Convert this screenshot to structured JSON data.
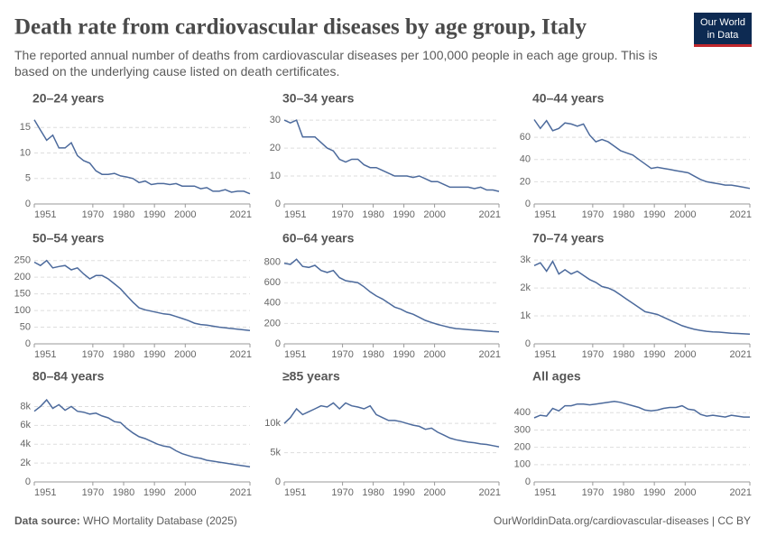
{
  "header": {
    "title": "Death rate from cardiovascular diseases by age group, Italy",
    "subtitle": "The reported annual number of deaths from cardiovascular diseases per 100,000 people in each age group. This is based on the underlying cause listed on death certificates.",
    "logo": [
      "Our World",
      "in Data"
    ]
  },
  "footer": {
    "source_label": "Data source:",
    "source": "WHO Mortality Database (2025)",
    "credit": "OurWorldinData.org/cardiovascular-diseases | CC BY"
  },
  "chart_data": [
    {
      "type": "line",
      "title": "20–24 years",
      "color": "#4c6a9c",
      "xlim": [
        1951,
        2021
      ],
      "xticks": [
        1951,
        1970,
        1980,
        1990,
        2000,
        2021
      ],
      "ylim": [
        0,
        17
      ],
      "yticks": [
        0,
        5,
        10,
        15
      ],
      "grid": true,
      "x": [
        1951,
        1953,
        1955,
        1957,
        1959,
        1961,
        1963,
        1965,
        1967,
        1969,
        1971,
        1973,
        1975,
        1977,
        1979,
        1981,
        1983,
        1985,
        1987,
        1989,
        1991,
        1993,
        1995,
        1997,
        1999,
        2001,
        2003,
        2005,
        2007,
        2009,
        2011,
        2013,
        2015,
        2017,
        2019,
        2021
      ],
      "values": [
        16.5,
        14.5,
        12.5,
        13.5,
        11,
        11,
        12,
        9.5,
        8.5,
        8,
        6.5,
        5.8,
        5.8,
        6,
        5.5,
        5.3,
        5,
        4.2,
        4.5,
        3.8,
        4,
        4,
        3.8,
        4,
        3.5,
        3.5,
        3.5,
        3,
        3.2,
        2.5,
        2.5,
        2.8,
        2.3,
        2.5,
        2.5,
        2
      ]
    },
    {
      "type": "line",
      "title": "30–34 years",
      "color": "#4c6a9c",
      "xlim": [
        1951,
        2021
      ],
      "xticks": [
        1951,
        1970,
        1980,
        1990,
        2000,
        2021
      ],
      "ylim": [
        0,
        31
      ],
      "yticks": [
        0,
        10,
        20,
        30
      ],
      "grid": true,
      "x": [
        1951,
        1953,
        1955,
        1957,
        1959,
        1961,
        1963,
        1965,
        1967,
        1969,
        1971,
        1973,
        1975,
        1977,
        1979,
        1981,
        1983,
        1985,
        1987,
        1989,
        1991,
        1993,
        1995,
        1997,
        1999,
        2001,
        2003,
        2005,
        2007,
        2009,
        2011,
        2013,
        2015,
        2017,
        2019,
        2021
      ],
      "values": [
        30,
        29,
        30,
        24,
        24,
        24,
        22,
        20,
        19,
        16,
        15,
        16,
        16,
        14,
        13,
        13,
        12,
        11,
        10,
        10,
        10,
        9.5,
        10,
        9,
        8,
        8,
        7,
        6,
        6,
        6,
        6,
        5.5,
        6,
        5,
        5,
        4.5
      ]
    },
    {
      "type": "line",
      "title": "40–44 years",
      "color": "#4c6a9c",
      "xlim": [
        1951,
        2021
      ],
      "xticks": [
        1951,
        1970,
        1980,
        1990,
        2000,
        2021
      ],
      "ylim": [
        0,
        78
      ],
      "yticks": [
        0,
        20,
        40,
        60
      ],
      "grid": true,
      "x": [
        1951,
        1953,
        1955,
        1957,
        1959,
        1961,
        1963,
        1965,
        1967,
        1969,
        1971,
        1973,
        1975,
        1977,
        1979,
        1981,
        1983,
        1985,
        1987,
        1989,
        1991,
        1993,
        1995,
        1997,
        1999,
        2001,
        2003,
        2005,
        2007,
        2009,
        2011,
        2013,
        2015,
        2017,
        2019,
        2021
      ],
      "values": [
        76,
        68,
        75,
        66,
        68,
        73,
        72,
        70,
        72,
        62,
        56,
        58,
        56,
        52,
        48,
        46,
        44,
        40,
        36,
        32,
        33,
        32,
        31,
        30,
        29,
        28,
        25,
        22,
        20,
        19,
        18,
        17,
        17,
        16,
        15,
        14
      ]
    },
    {
      "type": "line",
      "title": "50–54 years",
      "color": "#4c6a9c",
      "xlim": [
        1951,
        2021
      ],
      "xticks": [
        1951,
        1970,
        1980,
        1990,
        2000,
        2021
      ],
      "ylim": [
        0,
        260
      ],
      "yticks": [
        0,
        50,
        100,
        150,
        200,
        250
      ],
      "grid": true,
      "x": [
        1951,
        1953,
        1955,
        1957,
        1959,
        1961,
        1963,
        1965,
        1967,
        1969,
        1971,
        1973,
        1975,
        1977,
        1979,
        1981,
        1983,
        1985,
        1987,
        1989,
        1991,
        1993,
        1995,
        1997,
        1999,
        2001,
        2003,
        2005,
        2007,
        2009,
        2011,
        2013,
        2015,
        2017,
        2019,
        2021
      ],
      "values": [
        245,
        235,
        250,
        228,
        232,
        235,
        222,
        228,
        210,
        195,
        205,
        205,
        195,
        180,
        165,
        145,
        125,
        108,
        102,
        98,
        94,
        90,
        88,
        82,
        76,
        70,
        62,
        58,
        56,
        53,
        50,
        48,
        46,
        44,
        42,
        40
      ]
    },
    {
      "type": "line",
      "title": "60–64 years",
      "color": "#4c6a9c",
      "xlim": [
        1951,
        2021
      ],
      "xticks": [
        1951,
        1970,
        1980,
        1990,
        2000,
        2021
      ],
      "ylim": [
        0,
        850
      ],
      "yticks": [
        0,
        200,
        400,
        600,
        800
      ],
      "grid": true,
      "x": [
        1951,
        1953,
        1955,
        1957,
        1959,
        1961,
        1963,
        1965,
        1967,
        1969,
        1971,
        1973,
        1975,
        1977,
        1979,
        1981,
        1983,
        1985,
        1987,
        1989,
        1991,
        1993,
        1995,
        1997,
        1999,
        2001,
        2003,
        2005,
        2007,
        2009,
        2011,
        2013,
        2015,
        2017,
        2019,
        2021
      ],
      "values": [
        790,
        780,
        830,
        760,
        750,
        770,
        720,
        700,
        720,
        650,
        620,
        610,
        600,
        560,
        510,
        470,
        440,
        400,
        360,
        340,
        310,
        290,
        260,
        230,
        210,
        190,
        175,
        160,
        150,
        145,
        140,
        135,
        130,
        125,
        120,
        118
      ]
    },
    {
      "type": "line",
      "title": "70–74 years",
      "color": "#4c6a9c",
      "xlim": [
        1951,
        2021
      ],
      "xticks": [
        1951,
        1970,
        1980,
        1990,
        2000,
        2021
      ],
      "ylim": [
        0,
        3100
      ],
      "yticks": [
        0,
        {
          "value": 1000,
          "label": "1k"
        },
        {
          "value": 2000,
          "label": "2k"
        },
        {
          "value": 3000,
          "label": "3k"
        }
      ],
      "grid": true,
      "x": [
        1951,
        1953,
        1955,
        1957,
        1959,
        1961,
        1963,
        1965,
        1967,
        1969,
        1971,
        1973,
        1975,
        1977,
        1979,
        1981,
        1983,
        1985,
        1987,
        1989,
        1991,
        1993,
        1995,
        1997,
        1999,
        2001,
        2003,
        2005,
        2007,
        2009,
        2011,
        2013,
        2015,
        2017,
        2019,
        2021
      ],
      "values": [
        2800,
        2900,
        2600,
        2950,
        2500,
        2650,
        2500,
        2600,
        2450,
        2300,
        2200,
        2050,
        2000,
        1900,
        1750,
        1600,
        1450,
        1300,
        1150,
        1100,
        1050,
        950,
        850,
        750,
        650,
        580,
        520,
        480,
        450,
        430,
        420,
        400,
        380,
        370,
        360,
        350
      ]
    },
    {
      "type": "line",
      "title": "80–84 years",
      "color": "#4c6a9c",
      "xlim": [
        1951,
        2021
      ],
      "xticks": [
        1951,
        1970,
        1980,
        1990,
        2000,
        2021
      ],
      "ylim": [
        0,
        9000
      ],
      "yticks": [
        0,
        {
          "value": 2000,
          "label": "2k"
        },
        {
          "value": 4000,
          "label": "4k"
        },
        {
          "value": 6000,
          "label": "6k"
        },
        {
          "value": 8000,
          "label": "8k"
        }
      ],
      "grid": true,
      "x": [
        1951,
        1953,
        1955,
        1957,
        1959,
        1961,
        1963,
        1965,
        1967,
        1969,
        1971,
        1973,
        1975,
        1977,
        1979,
        1981,
        1983,
        1985,
        1987,
        1989,
        1991,
        1993,
        1995,
        1997,
        1999,
        2001,
        2003,
        2005,
        2007,
        2009,
        2011,
        2013,
        2015,
        2017,
        2019,
        2021
      ],
      "values": [
        7500,
        8000,
        8700,
        7800,
        8200,
        7600,
        8000,
        7500,
        7400,
        7200,
        7300,
        7000,
        6800,
        6400,
        6300,
        5700,
        5200,
        4800,
        4600,
        4300,
        4000,
        3800,
        3700,
        3300,
        3000,
        2800,
        2600,
        2500,
        2300,
        2200,
        2100,
        2000,
        1900,
        1800,
        1700,
        1600
      ]
    },
    {
      "type": "line",
      "title": "≥85 years",
      "color": "#4c6a9c",
      "xlim": [
        1951,
        2021
      ],
      "xticks": [
        1951,
        1970,
        1980,
        1990,
        2000,
        2021
      ],
      "ylim": [
        0,
        14500
      ],
      "yticks": [
        0,
        {
          "value": 5000,
          "label": "5k"
        },
        {
          "value": 10000,
          "label": "10k"
        }
      ],
      "grid": true,
      "x": [
        1951,
        1953,
        1955,
        1957,
        1959,
        1961,
        1963,
        1965,
        1967,
        1969,
        1971,
        1973,
        1975,
        1977,
        1979,
        1981,
        1983,
        1985,
        1987,
        1989,
        1991,
        1993,
        1995,
        1997,
        1999,
        2001,
        2003,
        2005,
        2007,
        2009,
        2011,
        2013,
        2015,
        2017,
        2019,
        2021
      ],
      "values": [
        10000,
        11000,
        12500,
        11500,
        12000,
        12500,
        13000,
        12800,
        13500,
        12500,
        13500,
        13000,
        12800,
        12500,
        13000,
        11500,
        11000,
        10500,
        10500,
        10300,
        10000,
        9700,
        9500,
        9000,
        9200,
        8500,
        8000,
        7500,
        7200,
        7000,
        6800,
        6700,
        6500,
        6400,
        6200,
        6000
      ]
    },
    {
      "type": "line",
      "title": "All ages",
      "color": "#4c6a9c",
      "xlim": [
        1951,
        2021
      ],
      "xticks": [
        1951,
        1970,
        1980,
        1990,
        2000,
        2021
      ],
      "ylim": [
        0,
        490
      ],
      "yticks": [
        0,
        100,
        200,
        300,
        400
      ],
      "grid": true,
      "x": [
        1951,
        1953,
        1955,
        1957,
        1959,
        1961,
        1963,
        1965,
        1967,
        1969,
        1971,
        1973,
        1975,
        1977,
        1979,
        1981,
        1983,
        1985,
        1987,
        1989,
        1991,
        1993,
        1995,
        1997,
        1999,
        2001,
        2003,
        2005,
        2007,
        2009,
        2011,
        2013,
        2015,
        2017,
        2019,
        2021
      ],
      "values": [
        370,
        385,
        380,
        425,
        410,
        440,
        440,
        450,
        450,
        445,
        450,
        455,
        460,
        465,
        460,
        450,
        440,
        430,
        415,
        410,
        415,
        425,
        430,
        430,
        440,
        420,
        415,
        390,
        380,
        385,
        380,
        375,
        385,
        380,
        375,
        375
      ]
    }
  ]
}
